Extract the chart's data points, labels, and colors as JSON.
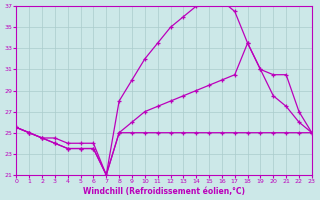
{
  "xlabel": "Windchill (Refroidissement éolien,°C)",
  "xlim": [
    0,
    23
  ],
  "ylim": [
    21,
    37
  ],
  "yticks": [
    21,
    23,
    25,
    27,
    29,
    31,
    33,
    35,
    37
  ],
  "xticks": [
    0,
    1,
    2,
    3,
    4,
    5,
    6,
    7,
    8,
    9,
    10,
    11,
    12,
    13,
    14,
    15,
    16,
    17,
    18,
    19,
    20,
    21,
    22,
    23
  ],
  "bg_color": "#cce8e8",
  "line_color": "#bb00bb",
  "grid_color": "#aacccc",
  "line1_x": [
    0,
    1,
    2,
    3,
    4,
    5,
    6,
    7,
    8,
    9,
    10,
    11,
    12,
    13,
    14,
    15,
    16,
    17,
    18,
    19,
    20,
    21,
    22,
    23
  ],
  "line1_y": [
    25.5,
    25.0,
    24.5,
    24.5,
    24.0,
    24.0,
    24.0,
    21.0,
    25.0,
    25.0,
    25.0,
    25.0,
    25.0,
    25.0,
    25.0,
    25.0,
    25.0,
    25.0,
    25.0,
    25.0,
    25.0,
    25.0,
    25.0,
    25.0
  ],
  "line2_x": [
    0,
    1,
    2,
    3,
    4,
    5,
    6,
    7,
    8,
    9,
    10,
    11,
    12,
    13,
    14,
    15,
    16,
    17,
    18,
    19,
    20,
    21,
    22,
    23
  ],
  "line2_y": [
    25.5,
    25.0,
    24.5,
    24.0,
    23.5,
    23.5,
    23.5,
    21.0,
    28.0,
    30.0,
    32.0,
    33.5,
    35.0,
    36.0,
    37.0,
    37.5,
    37.5,
    36.5,
    33.5,
    31.0,
    28.5,
    27.5,
    26.0,
    25.0
  ],
  "line3_x": [
    0,
    1,
    2,
    3,
    4,
    5,
    6,
    7,
    8,
    9,
    10,
    11,
    12,
    13,
    14,
    15,
    16,
    17,
    18,
    19,
    20,
    21,
    22,
    23
  ],
  "line3_y": [
    25.5,
    25.0,
    24.5,
    24.0,
    23.5,
    23.5,
    23.5,
    21.0,
    25.0,
    26.0,
    27.0,
    27.5,
    28.0,
    28.5,
    29.0,
    29.5,
    30.0,
    30.5,
    33.5,
    31.0,
    30.5,
    30.5,
    27.0,
    25.0
  ]
}
